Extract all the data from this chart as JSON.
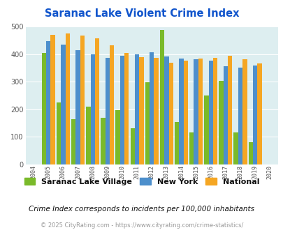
{
  "title": "Saranac Lake Violent Crime Index",
  "years": [
    2004,
    2005,
    2006,
    2007,
    2008,
    2009,
    2010,
    2011,
    2012,
    2013,
    2014,
    2015,
    2016,
    2017,
    2018,
    2019,
    2020
  ],
  "saranac": [
    null,
    403,
    224,
    165,
    210,
    168,
    196,
    131,
    298,
    487,
    153,
    117,
    250,
    304,
    115,
    80,
    null
  ],
  "new_york": [
    null,
    447,
    435,
    415,
    400,
    387,
    395,
    400,
    407,
    391,
    383,
    380,
    377,
    357,
    351,
    358,
    null
  ],
  "national": [
    null,
    469,
    474,
    468,
    457,
    432,
    405,
    388,
    387,
    368,
    376,
    383,
    386,
    395,
    381,
    367,
    null
  ],
  "color_saranac": "#7aba2a",
  "color_new_york": "#4d8fcc",
  "color_national": "#f5a623",
  "bg_color": "#ddeef0",
  "title_color": "#1155cc",
  "legend_label_color": "#111111",
  "subtitle_color": "#111111",
  "footer_color": "#999999",
  "subtitle": "Crime Index corresponds to incidents per 100,000 inhabitants",
  "footer": "© 2025 CityRating.com - https://www.cityrating.com/crime-statistics/",
  "ylim": [
    0,
    500
  ],
  "yticks": [
    0,
    100,
    200,
    300,
    400,
    500
  ]
}
